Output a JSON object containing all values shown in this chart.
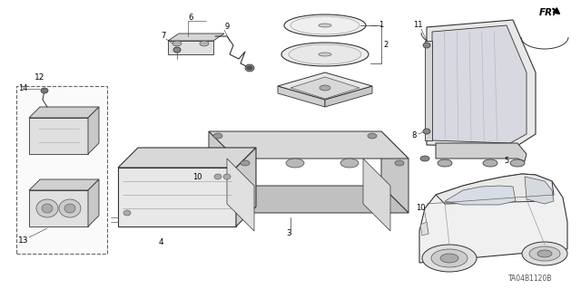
{
  "background_color": "#ffffff",
  "line_color": "#333333",
  "light_gray": "#aaaaaa",
  "mid_gray": "#777777",
  "watermark": "TA04B1120B",
  "fig_w": 6.4,
  "fig_h": 3.19,
  "dpi": 100
}
